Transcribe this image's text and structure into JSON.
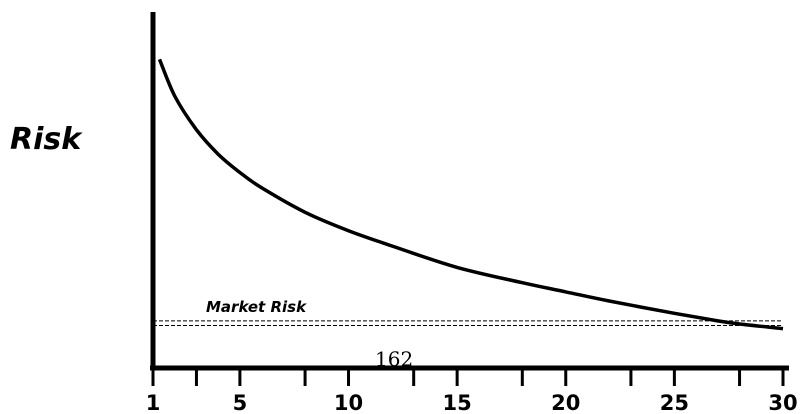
{
  "chart_data": {
    "type": "line",
    "title": "",
    "xlabel": "",
    "ylabel": "Risk",
    "xlim": [
      1,
      30
    ],
    "ylim": [
      0,
      1
    ],
    "x_ticks": [
      1,
      3,
      5,
      8,
      10,
      13,
      15,
      18,
      20,
      23,
      25,
      28,
      30
    ],
    "x_tick_labels": [
      {
        "x": 1,
        "label": "1"
      },
      {
        "x": 5,
        "label": "5"
      },
      {
        "x": 10,
        "label": "10"
      },
      {
        "x": 15,
        "label": "15"
      },
      {
        "x": 20,
        "label": "20"
      },
      {
        "x": 25,
        "label": "25"
      },
      {
        "x": 30,
        "label": "30"
      }
    ],
    "grid": false,
    "series": [
      {
        "points": [
          [
            1.3,
            0.95
          ],
          [
            2,
            0.83
          ],
          [
            3,
            0.72
          ],
          [
            4,
            0.64
          ],
          [
            5,
            0.58
          ],
          [
            6,
            0.53
          ],
          [
            8,
            0.45
          ],
          [
            10,
            0.39
          ],
          [
            12,
            0.34
          ],
          [
            15,
            0.27
          ],
          [
            18,
            0.22
          ],
          [
            20,
            0.19
          ],
          [
            22,
            0.16
          ],
          [
            25,
            0.12
          ],
          [
            27,
            0.095
          ],
          [
            28,
            0.085
          ],
          [
            30,
            0.07
          ]
        ]
      }
    ],
    "reference_bands": [
      {
        "label": "Market Risk",
        "y_low": 0.08,
        "y_high": 0.095,
        "style": "dashed"
      }
    ]
  },
  "page_number": "162"
}
